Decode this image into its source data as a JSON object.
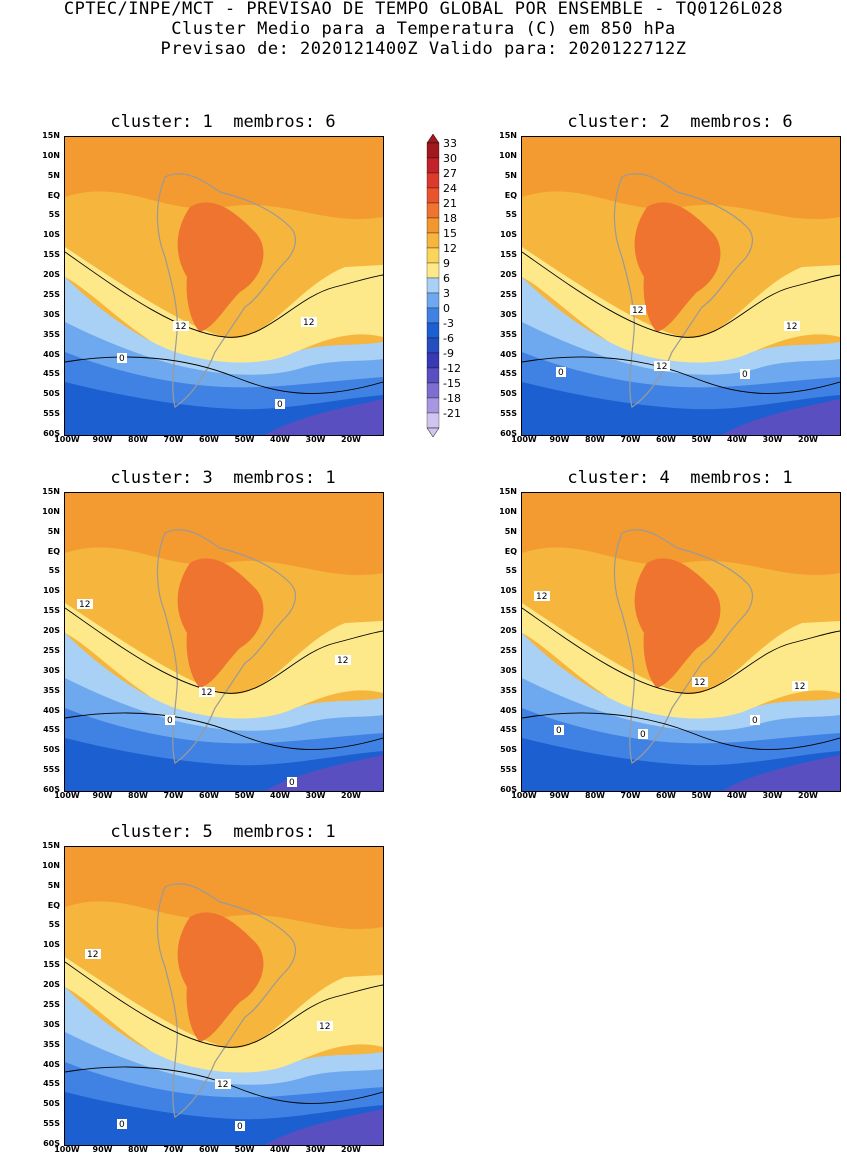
{
  "header": {
    "line1": "CPTEC/INPE/MCT - PREVISAO DE TEMPO GLOBAL POR ENSEMBLE - TQ0126L028",
    "line2": "Cluster Medio para a Temperatura (C) em 850 hPa",
    "line3": "Previsao de: 2020121400Z   Valido para: 2020122712Z"
  },
  "panels": [
    {
      "title": "cluster: 1  membros: 6",
      "contour_labels": [
        "12",
        "12",
        "0",
        "0"
      ]
    },
    {
      "title": "cluster: 2  membros: 6",
      "contour_labels": [
        "12",
        "12",
        "12",
        "0",
        "0"
      ]
    },
    {
      "title": "cluster: 3  membros: 1",
      "contour_labels": [
        "12",
        "12",
        "12",
        "0",
        "0"
      ]
    },
    {
      "title": "cluster: 4  membros: 1",
      "contour_labels": [
        "12",
        "12",
        "12",
        "0",
        "0",
        "0"
      ]
    },
    {
      "title": "cluster: 5  membros: 1",
      "contour_labels": [
        "12",
        "12",
        "12",
        "0",
        "0"
      ]
    }
  ],
  "lat_labels": [
    "15N",
    "10N",
    "5N",
    "EQ",
    "5S",
    "10S",
    "15S",
    "20S",
    "25S",
    "30S",
    "35S",
    "40S",
    "45S",
    "50S",
    "55S",
    "60S"
  ],
  "lon_labels": [
    "100W",
    "90W",
    "80W",
    "70W",
    "60W",
    "50W",
    "40W",
    "30W",
    "20W"
  ],
  "colorbar": {
    "labels": [
      "33",
      "30",
      "27",
      "24",
      "21",
      "18",
      "15",
      "12",
      "9",
      "6",
      "3",
      "0",
      "-3",
      "-6",
      "-9",
      "-12",
      "-15",
      "-18",
      "-21"
    ],
    "colors": [
      "#a0191e",
      "#c4222a",
      "#dd3a2e",
      "#e9542c",
      "#ee7430",
      "#f2962e",
      "#f6b53c",
      "#f9d65a",
      "#fde88a",
      "#a9d1f5",
      "#6ea8ee",
      "#3f82e3",
      "#1c5fd0",
      "#254dbd",
      "#3939b5",
      "#5a4fc0",
      "#7d6fd0",
      "#a897e0",
      "#d0c5f0"
    ]
  },
  "palette": {
    "warm1": "#f6b53c",
    "warm2": "#f2962e",
    "hot": "#ee7430",
    "yellow": "#fde88a",
    "lblue": "#a9d1f5",
    "mblue": "#6ea8ee",
    "blue": "#3f82e3",
    "dblue": "#1c5fd0",
    "purple": "#5a4fc0",
    "land": "#9a9a9a"
  }
}
